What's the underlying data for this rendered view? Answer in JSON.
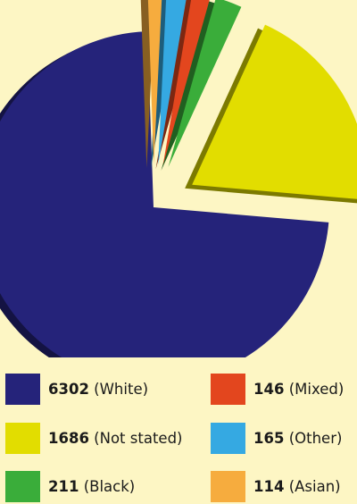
{
  "chart_data": {
    "type": "pie",
    "title": "",
    "slices": [
      {
        "label": "(White)",
        "value": 6302,
        "color": "#25237a"
      },
      {
        "label": "(Not stated)",
        "value": 1686,
        "color": "#e2dd00"
      },
      {
        "label": "(Black)",
        "value": 211,
        "color": "#3aad3a"
      },
      {
        "label": "(Mixed)",
        "value": 146,
        "color": "#e3461e"
      },
      {
        "label": "(Other)",
        "value": 165,
        "color": "#35a9e2"
      },
      {
        "label": "(Asian)",
        "value": 114,
        "color": "#f6ac3e"
      }
    ],
    "exploded": true,
    "three_d": true,
    "legend_position": "bottom"
  }
}
